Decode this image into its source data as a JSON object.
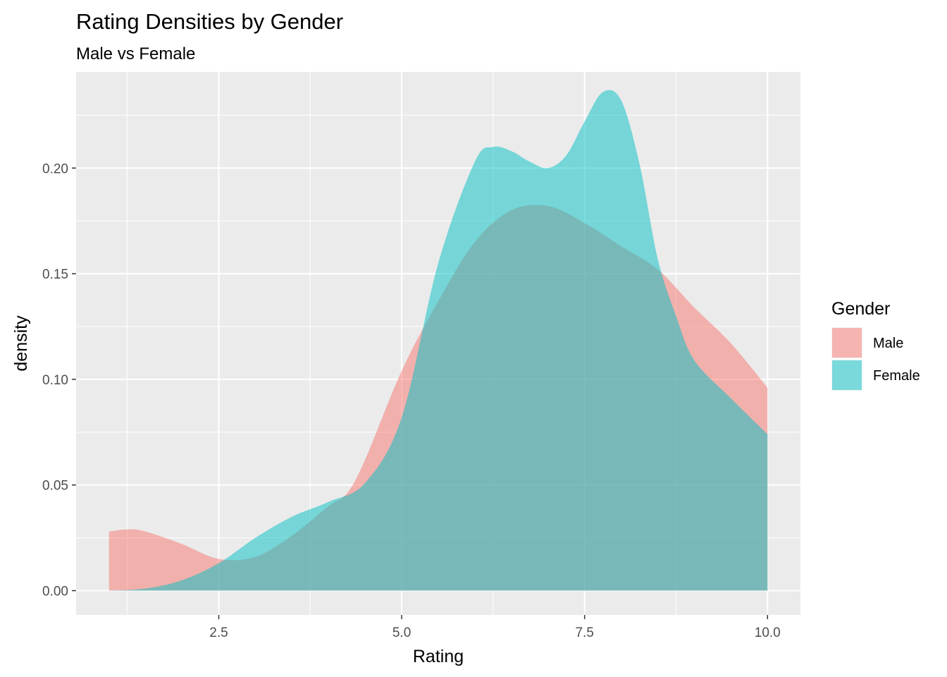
{
  "chart_data": {
    "type": "area",
    "title": "Rating Densities by Gender",
    "subtitle": "Male vs Female",
    "xlabel": "Rating",
    "ylabel": "density",
    "xlim": [
      0.55,
      10.45
    ],
    "ylim": [
      -0.0115,
      0.2455
    ],
    "x_ticks": [
      2.5,
      5.0,
      7.5,
      10.0
    ],
    "x_tick_labels": [
      "2.5",
      "5.0",
      "7.5",
      "10.0"
    ],
    "y_ticks": [
      0.0,
      0.05,
      0.1,
      0.15,
      0.2
    ],
    "y_tick_labels": [
      "0.00",
      "0.05",
      "0.10",
      "0.15",
      "0.20"
    ],
    "grid": true,
    "legend": {
      "title": "Gender",
      "position": "right"
    },
    "series": [
      {
        "name": "Male",
        "color": "#F8766D",
        "opacity": 0.5,
        "x": [
          1.0,
          1.25,
          1.5,
          2.0,
          2.5,
          3.0,
          3.5,
          4.0,
          4.25,
          4.5,
          5.0,
          5.5,
          6.0,
          6.5,
          7.0,
          7.5,
          8.0,
          8.5,
          9.0,
          9.5,
          10.0
        ],
        "values": [
          0.028,
          0.029,
          0.028,
          0.022,
          0.015,
          0.016,
          0.026,
          0.04,
          0.046,
          0.062,
          0.104,
          0.137,
          0.165,
          0.18,
          0.182,
          0.174,
          0.163,
          0.152,
          0.134,
          0.117,
          0.096
        ]
      },
      {
        "name": "Female",
        "color": "#00BFC4",
        "opacity": 0.5,
        "x": [
          1.0,
          1.5,
          2.0,
          2.5,
          3.0,
          3.5,
          4.0,
          4.5,
          5.0,
          5.5,
          6.0,
          6.25,
          6.5,
          6.75,
          7.0,
          7.25,
          7.5,
          7.75,
          8.0,
          8.25,
          8.5,
          8.75,
          9.0,
          9.5,
          10.0
        ],
        "values": [
          0.0,
          0.001,
          0.005,
          0.013,
          0.025,
          0.035,
          0.042,
          0.051,
          0.082,
          0.155,
          0.203,
          0.21,
          0.208,
          0.203,
          0.2,
          0.206,
          0.222,
          0.236,
          0.232,
          0.202,
          0.157,
          0.13,
          0.109,
          0.091,
          0.074
        ]
      }
    ]
  }
}
